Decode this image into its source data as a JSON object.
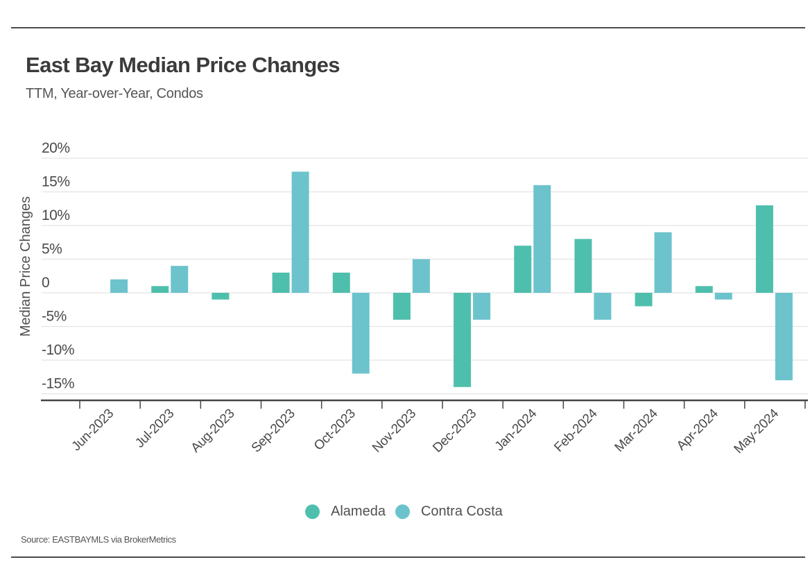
{
  "header": {
    "title": "East Bay Median Price Changes",
    "subtitle": "TTM, Year-over-Year, Condos"
  },
  "footer": {
    "source": "Source:  EASTBAYMLS via BrokerMetrics"
  },
  "colors": {
    "alameda": "#4fbfad",
    "contra_costa": "#6cc3cc",
    "grid": "#e3e3e3",
    "axis": "#444444",
    "text": "#4a4a4a"
  },
  "legend": [
    {
      "name": "Alameda",
      "color": "#4fbfad"
    },
    {
      "name": "Contra Costa",
      "color": "#6cc3cc"
    }
  ],
  "chart_data": {
    "type": "bar",
    "title": "East Bay Median Price Changes",
    "subtitle": "TTM, Year-over-Year, Condos",
    "xlabel": "",
    "ylabel": "Median Price Changes",
    "ylim": [
      -15,
      20
    ],
    "yticks": [
      20,
      15,
      10,
      5,
      0,
      -5,
      -10,
      -15
    ],
    "ytick_labels": [
      "20%",
      "15%",
      "10%",
      "5%",
      "0",
      "-5%",
      "-10%",
      "-15%"
    ],
    "grid": true,
    "legend_position": "bottom-center",
    "categories": [
      "Jun-2023",
      "Jul-2023",
      "Aug-2023",
      "Sep-2023",
      "Oct-2023",
      "Nov-2023",
      "Dec-2023",
      "Jan-2024",
      "Feb-2024",
      "Mar-2024",
      "Apr-2024",
      "May-2024"
    ],
    "series": [
      {
        "name": "Alameda",
        "color": "#4fbfad",
        "values": [
          0,
          1,
          -1,
          3,
          3,
          -4,
          -14,
          7,
          8,
          -2,
          1,
          13
        ]
      },
      {
        "name": "Contra Costa",
        "color": "#6cc3cc",
        "values": [
          2,
          4,
          0,
          18,
          -12,
          5,
          -4,
          16,
          -4,
          9,
          -1,
          -13
        ]
      }
    ],
    "units": "%"
  }
}
